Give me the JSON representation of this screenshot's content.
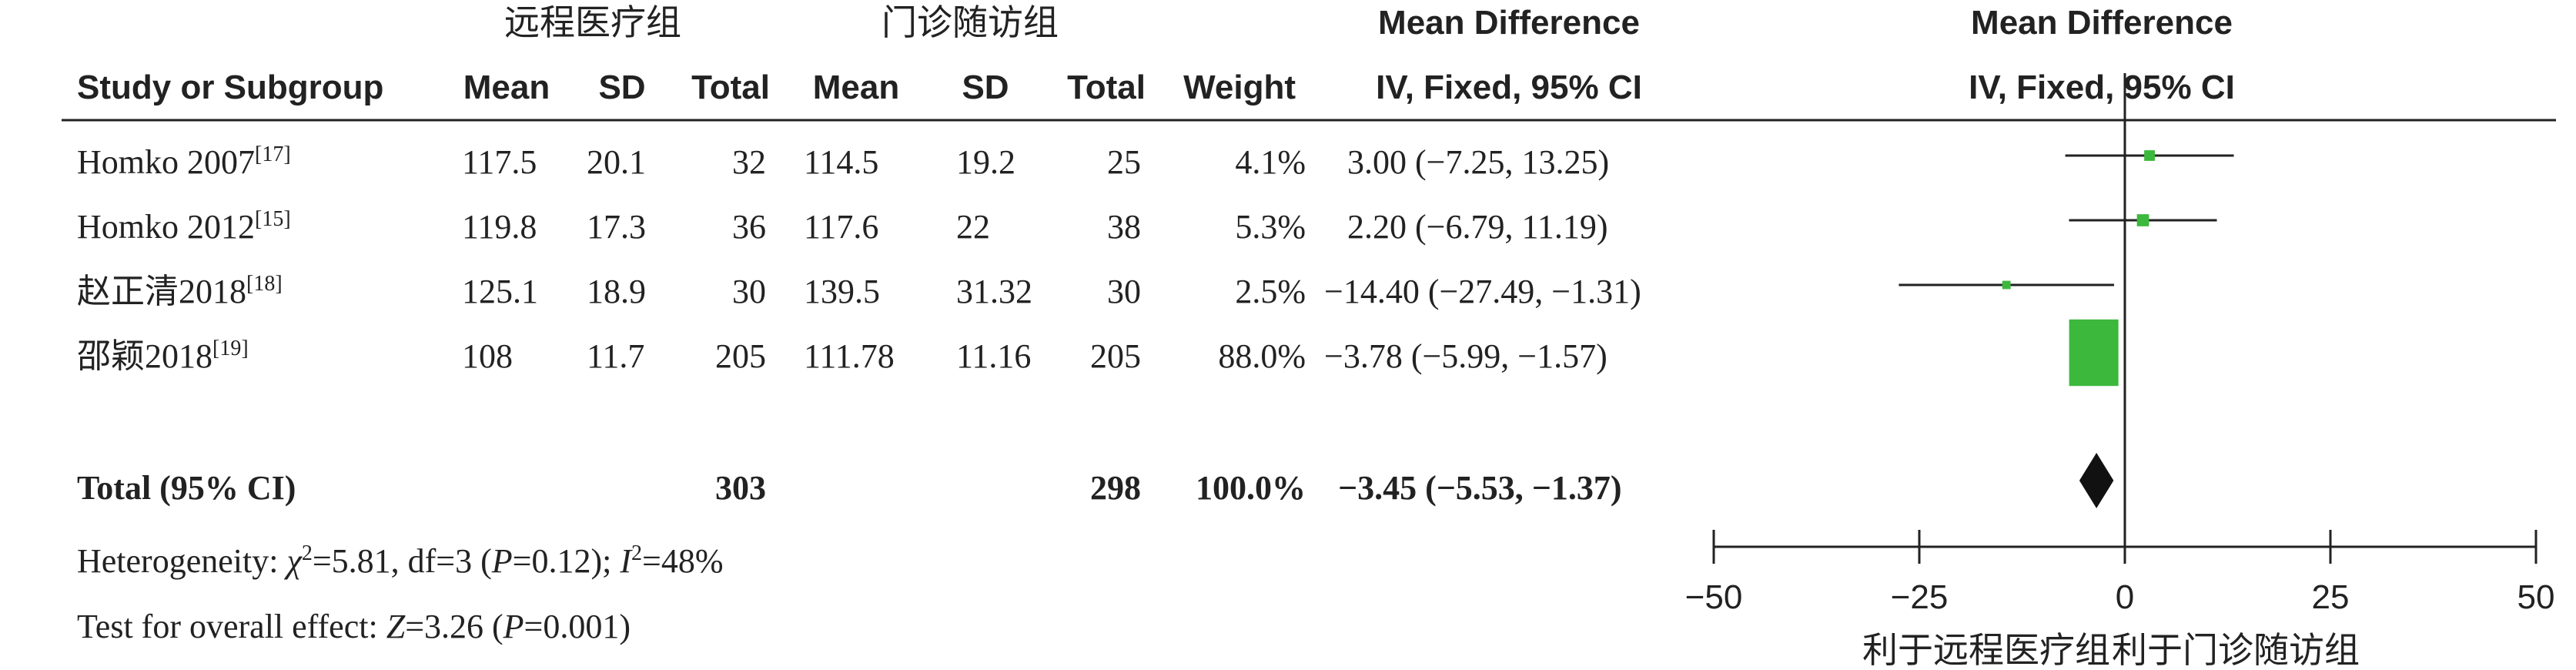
{
  "groups": {
    "experimental": "远程医疗组",
    "control": "门诊随访组"
  },
  "headers": {
    "study": "Study or Subgroup",
    "e_mean": "Mean",
    "e_sd": "SD",
    "e_total": "Total",
    "c_mean": "Mean",
    "c_sd": "SD",
    "c_total": "Total",
    "weight": "Weight",
    "md_title": "Mean Difference",
    "md_method": "IV, Fixed, 95% CI",
    "plot_title": "Mean Difference",
    "plot_method": "IV, Fixed, 95% CI"
  },
  "studies": [
    {
      "name": "Homko 2007",
      "ref": "[17]",
      "e_mean": "117.5",
      "e_sd": "20.1",
      "e_total": "32",
      "c_mean": "114.5",
      "c_sd": "19.2",
      "c_total": "25",
      "weight": "4.1%",
      "ci": "3.00 (−7.25, 13.25)"
    },
    {
      "name": "Homko 2012",
      "ref": "[15]",
      "e_mean": "119.8",
      "e_sd": "17.3",
      "e_total": "36",
      "c_mean": "117.6",
      "c_sd": "22",
      "c_total": "38",
      "weight": "5.3%",
      "ci": "2.20 (−6.79, 11.19)"
    },
    {
      "name": "赵正清2018",
      "ref": "[18]",
      "e_mean": "125.1",
      "e_sd": "18.9",
      "e_total": "30",
      "c_mean": "139.5",
      "c_sd": "31.32",
      "c_total": "30",
      "weight": "2.5%",
      "ci": "−14.40 (−27.49, −1.31)"
    },
    {
      "name": "邵颖2018",
      "ref": "[19]",
      "e_mean": "108",
      "e_sd": "11.7",
      "e_total": "205",
      "c_mean": "111.78",
      "c_sd": "11.16",
      "c_total": "205",
      "weight": "88.0%",
      "ci": "−3.78 (−5.99, −1.57)"
    }
  ],
  "total": {
    "label": "Total (95% CI)",
    "e_total": "303",
    "c_total": "298",
    "weight": "100.0%",
    "ci": "−3.45 (−5.53, −1.37)"
  },
  "heterogeneity": {
    "prefix": "Heterogeneity: ",
    "chi_sym": "χ",
    "chi_val": "=5.81, df=3 (",
    "p_sym": "P",
    "p_val": "=0.12); ",
    "i_sym": "I",
    "i_val": "=48%"
  },
  "overall": {
    "prefix": "Test for overall effect: ",
    "z_sym": "Z",
    "z_val": "=3.26 (",
    "p_sym": "P",
    "p_val": "=0.001)"
  },
  "axis": {
    "ticks": [
      "−50",
      "−25",
      "0",
      "25",
      "50"
    ]
  },
  "favours": {
    "left": "利于远程医疗组",
    "right": "利于门诊随访组"
  },
  "colors": {
    "square": "#3cb83c",
    "diamond": "#111111",
    "line": "#222222"
  },
  "chart_data": {
    "type": "forest",
    "xlim": [
      -50,
      50
    ],
    "xticks": [
      -50,
      -25,
      0,
      25,
      50
    ],
    "studies": [
      {
        "name": "Homko 2007",
        "md": 3.0,
        "lo": -7.25,
        "hi": 13.25,
        "weight": 4.1
      },
      {
        "name": "Homko 2012",
        "md": 2.2,
        "lo": -6.79,
        "hi": 11.19,
        "weight": 5.3
      },
      {
        "name": "赵正清2018",
        "md": -14.4,
        "lo": -27.49,
        "hi": -1.31,
        "weight": 2.5
      },
      {
        "name": "邵颖2018",
        "md": -3.78,
        "lo": -5.99,
        "hi": -1.57,
        "weight": 88.0
      }
    ],
    "pooled": {
      "md": -3.45,
      "lo": -5.53,
      "hi": -1.37
    }
  }
}
